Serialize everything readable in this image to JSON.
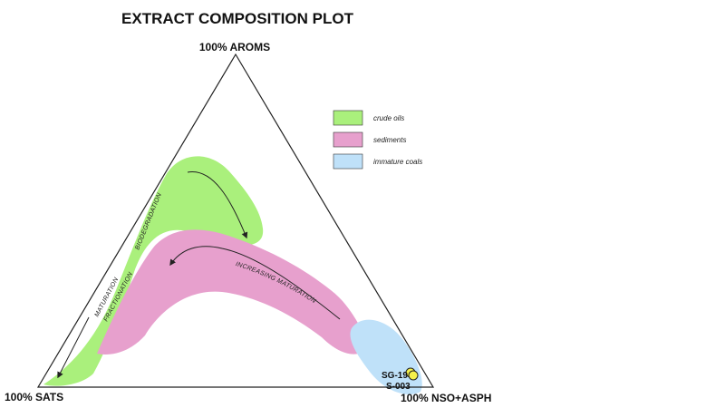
{
  "title": "EXTRACT COMPOSITION PLOT",
  "vertices": {
    "top": "100% AROMS",
    "left": "100% SATS",
    "right": "100% NSO+ASPH"
  },
  "legend": [
    {
      "label": "crude oils",
      "color": "#aaf07c"
    },
    {
      "label": "sediments",
      "color": "#e7a0cd"
    },
    {
      "label": "immature coals",
      "color": "#bfe1f9"
    }
  ],
  "arrow_labels": {
    "biodegradation": "BIODEGRADATION",
    "increasing_maturation": "INCREASING  MATURATION",
    "maturation_fractionation_line1": "MATURATION",
    "maturation_fractionation_line2": "FRACTIONATION"
  },
  "samples": [
    {
      "label": "SG-19",
      "color": "#f4f04a"
    },
    {
      "label": "S-003",
      "color": "#f4f04a"
    }
  ]
}
